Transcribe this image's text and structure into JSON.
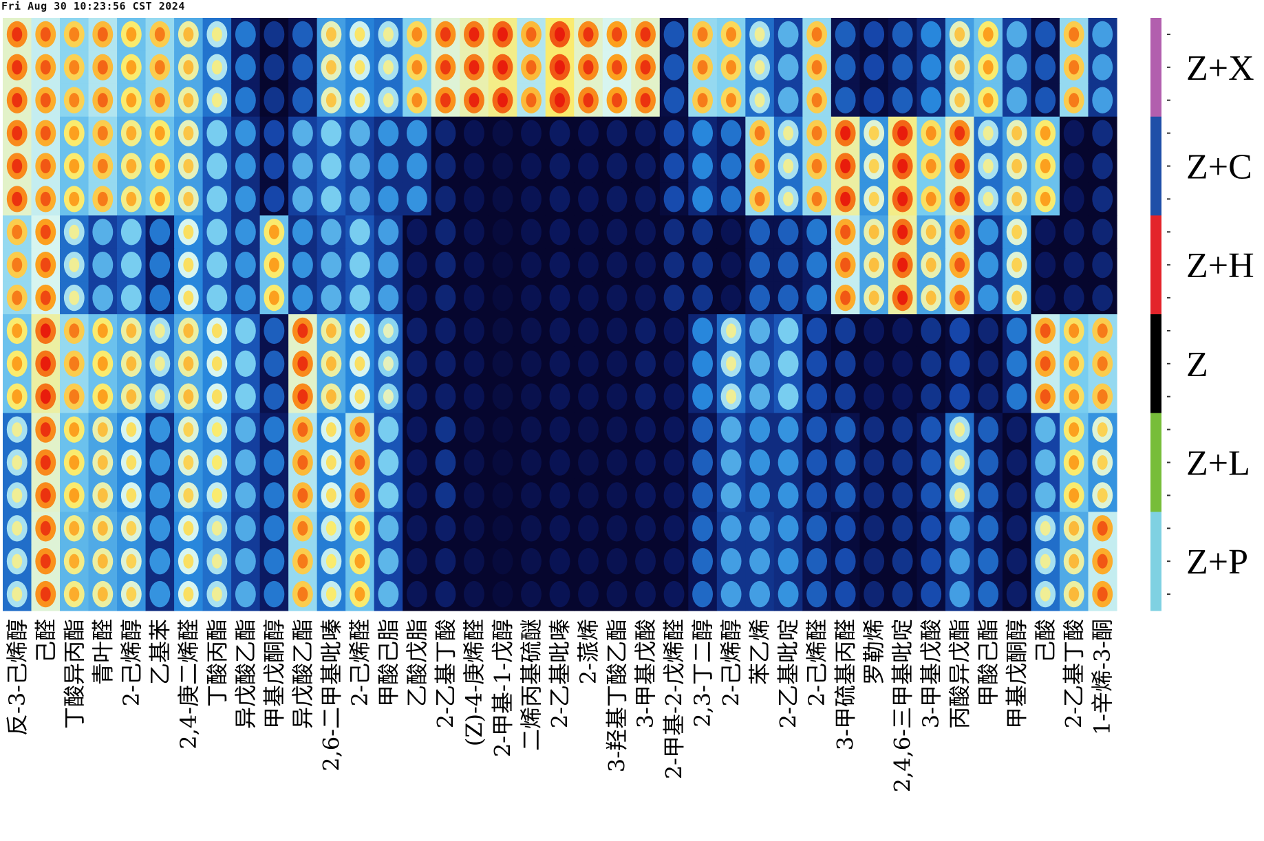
{
  "timestamp": "Fri Aug 30 10:23:56 CST 2024",
  "chart_data": {
    "type": "heatmap",
    "title": "",
    "xlabel": "",
    "ylabel": "",
    "colormap": "jet",
    "colors": {
      "background": "#ffffff",
      "low": "#06062e",
      "high": "#e81c0c"
    },
    "groups": [
      {
        "name": "Z+X",
        "color": "#b25fae",
        "rows": 3
      },
      {
        "name": "Z+C",
        "color": "#1f4fa8",
        "rows": 3
      },
      {
        "name": "Z+H",
        "color": "#e3242b",
        "rows": 3
      },
      {
        "name": "Z",
        "color": "#000000",
        "rows": 3
      },
      {
        "name": "Z+L",
        "color": "#77bd3a",
        "rows": 3
      },
      {
        "name": "Z+P",
        "color": "#7fd1e2",
        "rows": 3
      }
    ],
    "compounds": [
      "反-3-己烯醇",
      "己醛",
      "丁酸异丙酯",
      "青叶醛",
      "2-己烯醇",
      "乙基苯",
      "2,4-庚二烯醛",
      "丁酸丙酯",
      "异戊酸乙酯",
      "甲基戊酮醇",
      "异戊酸乙酯",
      "2,6-二甲基吡嗪",
      "2-己烯醛",
      "甲酸己脂",
      "乙酸戊脂",
      "2-乙基丁酸",
      "(Z)-4-庚烯醛",
      "2-甲基-1-戊醇",
      "二烯丙基硫醚",
      "2-乙基吡嗪",
      "2-蒎烯",
      "3-羟基丁酸乙酯",
      "3-甲基戊酸",
      "2-甲基-2-戊烯醛",
      "2,3-丁二醇",
      "2-己烯醇",
      "苯乙烯",
      "2-乙基吡啶",
      "2-己烯醛",
      "3-甲硫基丙醛",
      "罗勒烯",
      "2,4,6-三甲基吡啶",
      "3-甲基戊酸",
      "丙酸异戊酯",
      "甲酸己酯",
      "甲基戊酮醇",
      "己酸",
      "2-乙基丁酸",
      "1-辛烯-3-酮"
    ],
    "intensity": [
      [
        0.85,
        0.8,
        0.74,
        0.78,
        0.7,
        0.75,
        0.66,
        0.56,
        0.35,
        0.2,
        0.3,
        0.64,
        0.59,
        0.55,
        0.73,
        0.84,
        0.87,
        0.9,
        0.78,
        0.92,
        0.85,
        0.82,
        0.85,
        0.28,
        0.75,
        0.73,
        0.55,
        0.45,
        0.75,
        0.3,
        0.25,
        0.3,
        0.38,
        0.64,
        0.7,
        0.44,
        0.28,
        0.75,
        0.42
      ],
      [
        0.85,
        0.8,
        0.74,
        0.78,
        0.7,
        0.75,
        0.66,
        0.56,
        0.35,
        0.2,
        0.3,
        0.64,
        0.59,
        0.55,
        0.73,
        0.84,
        0.87,
        0.9,
        0.78,
        0.92,
        0.85,
        0.82,
        0.85,
        0.28,
        0.75,
        0.73,
        0.55,
        0.45,
        0.75,
        0.3,
        0.25,
        0.3,
        0.38,
        0.64,
        0.7,
        0.44,
        0.28,
        0.75,
        0.42
      ],
      [
        0.85,
        0.8,
        0.74,
        0.78,
        0.7,
        0.75,
        0.66,
        0.56,
        0.35,
        0.2,
        0.3,
        0.64,
        0.59,
        0.55,
        0.73,
        0.84,
        0.87,
        0.9,
        0.78,
        0.92,
        0.85,
        0.82,
        0.85,
        0.28,
        0.75,
        0.73,
        0.55,
        0.45,
        0.75,
        0.3,
        0.25,
        0.3,
        0.38,
        0.64,
        0.7,
        0.44,
        0.28,
        0.75,
        0.42
      ],
      [
        0.85,
        0.8,
        0.7,
        0.75,
        0.68,
        0.7,
        0.64,
        0.5,
        0.4,
        0.25,
        0.45,
        0.5,
        0.45,
        0.4,
        0.4,
        0.16,
        0.1,
        0.06,
        0.1,
        0.13,
        0.12,
        0.13,
        0.13,
        0.26,
        0.38,
        0.34,
        0.75,
        0.55,
        0.75,
        0.88,
        0.62,
        0.9,
        0.72,
        0.85,
        0.55,
        0.64,
        0.7,
        0.12,
        0.18
      ],
      [
        0.85,
        0.8,
        0.7,
        0.75,
        0.68,
        0.7,
        0.64,
        0.5,
        0.4,
        0.25,
        0.45,
        0.5,
        0.45,
        0.4,
        0.4,
        0.16,
        0.1,
        0.06,
        0.1,
        0.13,
        0.12,
        0.13,
        0.13,
        0.26,
        0.38,
        0.34,
        0.75,
        0.55,
        0.75,
        0.88,
        0.62,
        0.9,
        0.72,
        0.85,
        0.55,
        0.64,
        0.7,
        0.12,
        0.18
      ],
      [
        0.85,
        0.8,
        0.7,
        0.75,
        0.68,
        0.7,
        0.64,
        0.5,
        0.4,
        0.25,
        0.45,
        0.5,
        0.45,
        0.4,
        0.4,
        0.16,
        0.1,
        0.06,
        0.1,
        0.13,
        0.12,
        0.13,
        0.13,
        0.26,
        0.38,
        0.34,
        0.75,
        0.55,
        0.75,
        0.88,
        0.62,
        0.9,
        0.72,
        0.85,
        0.55,
        0.64,
        0.7,
        0.12,
        0.18
      ],
      [
        0.75,
        0.82,
        0.55,
        0.45,
        0.5,
        0.35,
        0.6,
        0.5,
        0.4,
        0.7,
        0.4,
        0.45,
        0.5,
        0.42,
        0.12,
        0.16,
        0.1,
        0.04,
        0.09,
        0.12,
        0.1,
        0.11,
        0.11,
        0.18,
        0.2,
        0.1,
        0.3,
        0.3,
        0.35,
        0.8,
        0.65,
        0.88,
        0.65,
        0.8,
        0.4,
        0.62,
        0.12,
        0.14,
        0.16
      ],
      [
        0.75,
        0.82,
        0.55,
        0.45,
        0.5,
        0.35,
        0.6,
        0.5,
        0.4,
        0.7,
        0.4,
        0.45,
        0.5,
        0.42,
        0.12,
        0.16,
        0.1,
        0.04,
        0.09,
        0.12,
        0.1,
        0.11,
        0.11,
        0.18,
        0.2,
        0.1,
        0.3,
        0.3,
        0.35,
        0.8,
        0.65,
        0.88,
        0.65,
        0.8,
        0.4,
        0.62,
        0.12,
        0.14,
        0.16
      ],
      [
        0.75,
        0.82,
        0.55,
        0.45,
        0.5,
        0.35,
        0.6,
        0.5,
        0.4,
        0.7,
        0.4,
        0.45,
        0.5,
        0.42,
        0.12,
        0.16,
        0.1,
        0.04,
        0.09,
        0.12,
        0.1,
        0.11,
        0.11,
        0.18,
        0.2,
        0.1,
        0.3,
        0.3,
        0.35,
        0.8,
        0.65,
        0.88,
        0.65,
        0.8,
        0.4,
        0.62,
        0.12,
        0.14,
        0.16
      ],
      [
        0.7,
        0.88,
        0.75,
        0.7,
        0.66,
        0.55,
        0.66,
        0.6,
        0.5,
        0.3,
        0.85,
        0.66,
        0.6,
        0.52,
        0.14,
        0.14,
        0.1,
        0.05,
        0.08,
        0.11,
        0.1,
        0.1,
        0.14,
        0.12,
        0.38,
        0.55,
        0.45,
        0.5,
        0.26,
        0.22,
        0.12,
        0.12,
        0.2,
        0.25,
        0.16,
        0.35,
        0.8,
        0.72,
        0.75
      ],
      [
        0.7,
        0.88,
        0.75,
        0.7,
        0.66,
        0.55,
        0.66,
        0.6,
        0.5,
        0.3,
        0.85,
        0.66,
        0.6,
        0.52,
        0.14,
        0.14,
        0.1,
        0.05,
        0.08,
        0.11,
        0.1,
        0.1,
        0.14,
        0.12,
        0.38,
        0.55,
        0.45,
        0.5,
        0.26,
        0.22,
        0.12,
        0.12,
        0.2,
        0.25,
        0.16,
        0.35,
        0.8,
        0.72,
        0.75
      ],
      [
        0.7,
        0.88,
        0.75,
        0.7,
        0.66,
        0.55,
        0.66,
        0.6,
        0.5,
        0.3,
        0.85,
        0.66,
        0.6,
        0.52,
        0.14,
        0.14,
        0.1,
        0.05,
        0.08,
        0.11,
        0.1,
        0.1,
        0.14,
        0.12,
        0.38,
        0.55,
        0.45,
        0.5,
        0.26,
        0.22,
        0.12,
        0.12,
        0.2,
        0.25,
        0.16,
        0.35,
        0.8,
        0.72,
        0.75
      ],
      [
        0.55,
        0.85,
        0.7,
        0.65,
        0.6,
        0.4,
        0.62,
        0.58,
        0.45,
        0.35,
        0.78,
        0.6,
        0.78,
        0.5,
        0.12,
        0.2,
        0.08,
        0.04,
        0.08,
        0.1,
        0.08,
        0.09,
        0.12,
        0.12,
        0.3,
        0.44,
        0.4,
        0.4,
        0.28,
        0.3,
        0.18,
        0.2,
        0.28,
        0.55,
        0.3,
        0.14,
        0.46,
        0.7,
        0.62
      ],
      [
        0.55,
        0.85,
        0.7,
        0.65,
        0.6,
        0.4,
        0.62,
        0.58,
        0.45,
        0.35,
        0.78,
        0.6,
        0.78,
        0.5,
        0.12,
        0.2,
        0.08,
        0.04,
        0.08,
        0.1,
        0.08,
        0.09,
        0.12,
        0.12,
        0.3,
        0.44,
        0.4,
        0.4,
        0.28,
        0.3,
        0.18,
        0.2,
        0.28,
        0.55,
        0.3,
        0.14,
        0.46,
        0.7,
        0.62
      ],
      [
        0.55,
        0.85,
        0.7,
        0.65,
        0.6,
        0.4,
        0.62,
        0.58,
        0.45,
        0.35,
        0.78,
        0.6,
        0.78,
        0.5,
        0.12,
        0.2,
        0.08,
        0.04,
        0.08,
        0.1,
        0.08,
        0.09,
        0.12,
        0.12,
        0.3,
        0.44,
        0.4,
        0.4,
        0.28,
        0.3,
        0.18,
        0.2,
        0.28,
        0.55,
        0.3,
        0.14,
        0.46,
        0.7,
        0.62
      ],
      [
        0.55,
        0.84,
        0.68,
        0.66,
        0.62,
        0.4,
        0.6,
        0.55,
        0.44,
        0.35,
        0.75,
        0.58,
        0.7,
        0.46,
        0.11,
        0.14,
        0.08,
        0.04,
        0.08,
        0.1,
        0.09,
        0.09,
        0.11,
        0.12,
        0.32,
        0.42,
        0.42,
        0.4,
        0.3,
        0.26,
        0.16,
        0.2,
        0.26,
        0.42,
        0.32,
        0.14,
        0.55,
        0.66,
        0.8
      ],
      [
        0.55,
        0.84,
        0.68,
        0.66,
        0.62,
        0.4,
        0.6,
        0.55,
        0.44,
        0.35,
        0.75,
        0.58,
        0.7,
        0.46,
        0.11,
        0.14,
        0.08,
        0.04,
        0.08,
        0.1,
        0.09,
        0.09,
        0.11,
        0.12,
        0.32,
        0.42,
        0.42,
        0.4,
        0.3,
        0.26,
        0.16,
        0.2,
        0.26,
        0.42,
        0.32,
        0.14,
        0.55,
        0.66,
        0.8
      ],
      [
        0.55,
        0.84,
        0.68,
        0.66,
        0.62,
        0.4,
        0.6,
        0.55,
        0.44,
        0.35,
        0.75,
        0.58,
        0.7,
        0.46,
        0.11,
        0.14,
        0.08,
        0.04,
        0.08,
        0.1,
        0.09,
        0.09,
        0.11,
        0.12,
        0.32,
        0.42,
        0.42,
        0.4,
        0.3,
        0.26,
        0.16,
        0.2,
        0.26,
        0.42,
        0.32,
        0.14,
        0.55,
        0.66,
        0.8
      ]
    ]
  }
}
